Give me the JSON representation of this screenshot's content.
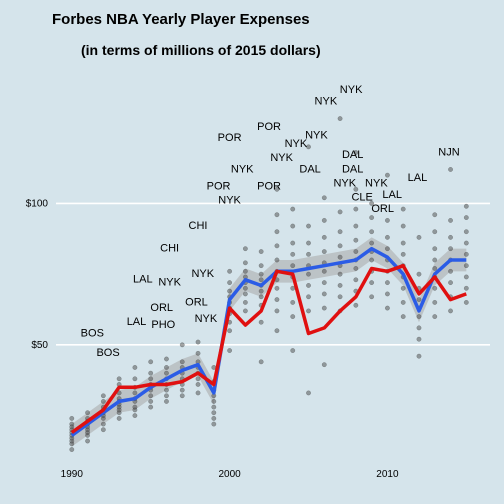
{
  "chart_data": {
    "type": "scatter",
    "title": "Forbes NBA Yearly Player Expenses",
    "subtitle": "(in terms of millions of 2015 dollars)",
    "xlabel": "",
    "ylabel": "",
    "xlim": [
      1989.0,
      2016.5
    ],
    "ylim": [
      10,
      150
    ],
    "x_ticks": [
      1990,
      2000,
      2010
    ],
    "y_ticks": [
      50,
      100
    ],
    "y_tick_labels": [
      "$50",
      "$100"
    ],
    "grid": "horizontal major lines only",
    "legend": "none",
    "colors": {
      "background": "#d5e4eb",
      "points": "#4a4a4a",
      "blue_line": "#2b5ce6",
      "red_line": "#e01010",
      "band": "#a8a8a8",
      "gridline": "#ffffff"
    },
    "series": [
      {
        "kind": "line",
        "color": "#2b5ce6",
        "x": [
          1990,
          1991,
          1992,
          1993,
          1994,
          1995,
          1996,
          1997,
          1998,
          1999,
          2000,
          2001,
          2002,
          2003,
          2004,
          2005,
          2006,
          2007,
          2008,
          2009,
          2010,
          2011,
          2012,
          2013,
          2014,
          2015
        ],
        "y": [
          18,
          22,
          26,
          30,
          31,
          35,
          38,
          41,
          43,
          33,
          66,
          73,
          71,
          76,
          76,
          77,
          78,
          79,
          80,
          84,
          81,
          75,
          62,
          75,
          80,
          80
        ]
      },
      {
        "kind": "line",
        "color": "#e01010",
        "x": [
          1990,
          1991,
          1992,
          1993,
          1994,
          1995,
          1996,
          1997,
          1998,
          1999,
          2000,
          2001,
          2002,
          2003,
          2004,
          2005,
          2006,
          2007,
          2008,
          2009,
          2010,
          2011,
          2012,
          2013,
          2014,
          2015
        ],
        "y": [
          19,
          23,
          27,
          35,
          35,
          36,
          36,
          37,
          40,
          36,
          63,
          57,
          62,
          76,
          75,
          54,
          56,
          62,
          67,
          77,
          76,
          78,
          68,
          74,
          66,
          68
        ]
      }
    ],
    "points": [
      {
        "x": 1990,
        "y": 13
      },
      {
        "x": 1990,
        "y": 15
      },
      {
        "x": 1990,
        "y": 16
      },
      {
        "x": 1990,
        "y": 17
      },
      {
        "x": 1990,
        "y": 18
      },
      {
        "x": 1990,
        "y": 19
      },
      {
        "x": 1990,
        "y": 20
      },
      {
        "x": 1990,
        "y": 21
      },
      {
        "x": 1990,
        "y": 22
      },
      {
        "x": 1990,
        "y": 24
      },
      {
        "x": 1991,
        "y": 16
      },
      {
        "x": 1991,
        "y": 18
      },
      {
        "x": 1991,
        "y": 19
      },
      {
        "x": 1991,
        "y": 20
      },
      {
        "x": 1991,
        "y": 21
      },
      {
        "x": 1991,
        "y": 22
      },
      {
        "x": 1991,
        "y": 23
      },
      {
        "x": 1991,
        "y": 24
      },
      {
        "x": 1991,
        "y": 26
      },
      {
        "x": 1992,
        "y": 20
      },
      {
        "x": 1992,
        "y": 22
      },
      {
        "x": 1992,
        "y": 24
      },
      {
        "x": 1992,
        "y": 25
      },
      {
        "x": 1992,
        "y": 26
      },
      {
        "x": 1992,
        "y": 27
      },
      {
        "x": 1992,
        "y": 28
      },
      {
        "x": 1992,
        "y": 30
      },
      {
        "x": 1992,
        "y": 32
      },
      {
        "x": 1993,
        "y": 24
      },
      {
        "x": 1993,
        "y": 26
      },
      {
        "x": 1993,
        "y": 27
      },
      {
        "x": 1993,
        "y": 28
      },
      {
        "x": 1993,
        "y": 29
      },
      {
        "x": 1993,
        "y": 30
      },
      {
        "x": 1993,
        "y": 31
      },
      {
        "x": 1993,
        "y": 33
      },
      {
        "x": 1993,
        "y": 36
      },
      {
        "x": 1993,
        "y": 38
      },
      {
        "x": 1994,
        "y": 25
      },
      {
        "x": 1994,
        "y": 27
      },
      {
        "x": 1994,
        "y": 28
      },
      {
        "x": 1994,
        "y": 30
      },
      {
        "x": 1994,
        "y": 31
      },
      {
        "x": 1994,
        "y": 33
      },
      {
        "x": 1994,
        "y": 35
      },
      {
        "x": 1994,
        "y": 38
      },
      {
        "x": 1994,
        "y": 42
      },
      {
        "x": 1995,
        "y": 28
      },
      {
        "x": 1995,
        "y": 30
      },
      {
        "x": 1995,
        "y": 32
      },
      {
        "x": 1995,
        "y": 34
      },
      {
        "x": 1995,
        "y": 35
      },
      {
        "x": 1995,
        "y": 36
      },
      {
        "x": 1995,
        "y": 38
      },
      {
        "x": 1995,
        "y": 40
      },
      {
        "x": 1995,
        "y": 44
      },
      {
        "x": 1996,
        "y": 30
      },
      {
        "x": 1996,
        "y": 32
      },
      {
        "x": 1996,
        "y": 34
      },
      {
        "x": 1996,
        "y": 36
      },
      {
        "x": 1996,
        "y": 38
      },
      {
        "x": 1996,
        "y": 40
      },
      {
        "x": 1996,
        "y": 42
      },
      {
        "x": 1996,
        "y": 45
      },
      {
        "x": 1997,
        "y": 32
      },
      {
        "x": 1997,
        "y": 34
      },
      {
        "x": 1997,
        "y": 36
      },
      {
        "x": 1997,
        "y": 38
      },
      {
        "x": 1997,
        "y": 40
      },
      {
        "x": 1997,
        "y": 42
      },
      {
        "x": 1997,
        "y": 44
      },
      {
        "x": 1997,
        "y": 50
      },
      {
        "x": 1998,
        "y": 33
      },
      {
        "x": 1998,
        "y": 36
      },
      {
        "x": 1998,
        "y": 38
      },
      {
        "x": 1998,
        "y": 40
      },
      {
        "x": 1998,
        "y": 42
      },
      {
        "x": 1998,
        "y": 44
      },
      {
        "x": 1998,
        "y": 47
      },
      {
        "x": 1998,
        "y": 51
      },
      {
        "x": 1999,
        "y": 22
      },
      {
        "x": 1999,
        "y": 24
      },
      {
        "x": 1999,
        "y": 26
      },
      {
        "x": 1999,
        "y": 28
      },
      {
        "x": 1999,
        "y": 30
      },
      {
        "x": 1999,
        "y": 32
      },
      {
        "x": 1999,
        "y": 34
      },
      {
        "x": 1999,
        "y": 37
      },
      {
        "x": 1999,
        "y": 42
      },
      {
        "x": 2000,
        "y": 48
      },
      {
        "x": 2000,
        "y": 55
      },
      {
        "x": 2000,
        "y": 58
      },
      {
        "x": 2000,
        "y": 61
      },
      {
        "x": 2000,
        "y": 63
      },
      {
        "x": 2000,
        "y": 65
      },
      {
        "x": 2000,
        "y": 67
      },
      {
        "x": 2000,
        "y": 69
      },
      {
        "x": 2000,
        "y": 72
      },
      {
        "x": 2000,
        "y": 76
      },
      {
        "x": 2001,
        "y": 62
      },
      {
        "x": 2001,
        "y": 65
      },
      {
        "x": 2001,
        "y": 68
      },
      {
        "x": 2001,
        "y": 70
      },
      {
        "x": 2001,
        "y": 72
      },
      {
        "x": 2001,
        "y": 74
      },
      {
        "x": 2001,
        "y": 76
      },
      {
        "x": 2001,
        "y": 79
      },
      {
        "x": 2001,
        "y": 84
      },
      {
        "x": 2002,
        "y": 44
      },
      {
        "x": 2002,
        "y": 58
      },
      {
        "x": 2002,
        "y": 64
      },
      {
        "x": 2002,
        "y": 67
      },
      {
        "x": 2002,
        "y": 69
      },
      {
        "x": 2002,
        "y": 71
      },
      {
        "x": 2002,
        "y": 73
      },
      {
        "x": 2002,
        "y": 75
      },
      {
        "x": 2002,
        "y": 78
      },
      {
        "x": 2002,
        "y": 83
      },
      {
        "x": 2003,
        "y": 55
      },
      {
        "x": 2003,
        "y": 62
      },
      {
        "x": 2003,
        "y": 66
      },
      {
        "x": 2003,
        "y": 70
      },
      {
        "x": 2003,
        "y": 73
      },
      {
        "x": 2003,
        "y": 76
      },
      {
        "x": 2003,
        "y": 80
      },
      {
        "x": 2003,
        "y": 85
      },
      {
        "x": 2003,
        "y": 90
      },
      {
        "x": 2003,
        "y": 96
      },
      {
        "x": 2003,
        "y": 105
      },
      {
        "x": 2004,
        "y": 48
      },
      {
        "x": 2004,
        "y": 60
      },
      {
        "x": 2004,
        "y": 65
      },
      {
        "x": 2004,
        "y": 70
      },
      {
        "x": 2004,
        "y": 74
      },
      {
        "x": 2004,
        "y": 78
      },
      {
        "x": 2004,
        "y": 82
      },
      {
        "x": 2004,
        "y": 86
      },
      {
        "x": 2004,
        "y": 92
      },
      {
        "x": 2004,
        "y": 98
      },
      {
        "x": 2005,
        "y": 33
      },
      {
        "x": 2005,
        "y": 62
      },
      {
        "x": 2005,
        "y": 67
      },
      {
        "x": 2005,
        "y": 71
      },
      {
        "x": 2005,
        "y": 75
      },
      {
        "x": 2005,
        "y": 78
      },
      {
        "x": 2005,
        "y": 82
      },
      {
        "x": 2005,
        "y": 86
      },
      {
        "x": 2005,
        "y": 92
      },
      {
        "x": 2005,
        "y": 120
      },
      {
        "x": 2006,
        "y": 43
      },
      {
        "x": 2006,
        "y": 63
      },
      {
        "x": 2006,
        "y": 68
      },
      {
        "x": 2006,
        "y": 72
      },
      {
        "x": 2006,
        "y": 76
      },
      {
        "x": 2006,
        "y": 79
      },
      {
        "x": 2006,
        "y": 83
      },
      {
        "x": 2006,
        "y": 88
      },
      {
        "x": 2006,
        "y": 94
      },
      {
        "x": 2006,
        "y": 102
      },
      {
        "x": 2007,
        "y": 62
      },
      {
        "x": 2007,
        "y": 67
      },
      {
        "x": 2007,
        "y": 71
      },
      {
        "x": 2007,
        "y": 75
      },
      {
        "x": 2007,
        "y": 78
      },
      {
        "x": 2007,
        "y": 81
      },
      {
        "x": 2007,
        "y": 85
      },
      {
        "x": 2007,
        "y": 90
      },
      {
        "x": 2007,
        "y": 97
      },
      {
        "x": 2007,
        "y": 130
      },
      {
        "x": 2008,
        "y": 64
      },
      {
        "x": 2008,
        "y": 69
      },
      {
        "x": 2008,
        "y": 73
      },
      {
        "x": 2008,
        "y": 77
      },
      {
        "x": 2008,
        "y": 80
      },
      {
        "x": 2008,
        "y": 83
      },
      {
        "x": 2008,
        "y": 87
      },
      {
        "x": 2008,
        "y": 92
      },
      {
        "x": 2008,
        "y": 98
      },
      {
        "x": 2008,
        "y": 105
      },
      {
        "x": 2008,
        "y": 118
      },
      {
        "x": 2009,
        "y": 67
      },
      {
        "x": 2009,
        "y": 72
      },
      {
        "x": 2009,
        "y": 76
      },
      {
        "x": 2009,
        "y": 80
      },
      {
        "x": 2009,
        "y": 83
      },
      {
        "x": 2009,
        "y": 86
      },
      {
        "x": 2009,
        "y": 90
      },
      {
        "x": 2009,
        "y": 95
      },
      {
        "x": 2009,
        "y": 100
      },
      {
        "x": 2010,
        "y": 63
      },
      {
        "x": 2010,
        "y": 68
      },
      {
        "x": 2010,
        "y": 72
      },
      {
        "x": 2010,
        "y": 76
      },
      {
        "x": 2010,
        "y": 80
      },
      {
        "x": 2010,
        "y": 84
      },
      {
        "x": 2010,
        "y": 88
      },
      {
        "x": 2010,
        "y": 94
      },
      {
        "x": 2010,
        "y": 110
      },
      {
        "x": 2011,
        "y": 60
      },
      {
        "x": 2011,
        "y": 65
      },
      {
        "x": 2011,
        "y": 70
      },
      {
        "x": 2011,
        "y": 74
      },
      {
        "x": 2011,
        "y": 78
      },
      {
        "x": 2011,
        "y": 82
      },
      {
        "x": 2011,
        "y": 86
      },
      {
        "x": 2011,
        "y": 92
      },
      {
        "x": 2011,
        "y": 98
      },
      {
        "x": 2012,
        "y": 46
      },
      {
        "x": 2012,
        "y": 52
      },
      {
        "x": 2012,
        "y": 56
      },
      {
        "x": 2012,
        "y": 60
      },
      {
        "x": 2012,
        "y": 63
      },
      {
        "x": 2012,
        "y": 66
      },
      {
        "x": 2012,
        "y": 70
      },
      {
        "x": 2012,
        "y": 75
      },
      {
        "x": 2012,
        "y": 88
      },
      {
        "x": 2013,
        "y": 60
      },
      {
        "x": 2013,
        "y": 65
      },
      {
        "x": 2013,
        "y": 70
      },
      {
        "x": 2013,
        "y": 74
      },
      {
        "x": 2013,
        "y": 77
      },
      {
        "x": 2013,
        "y": 80
      },
      {
        "x": 2013,
        "y": 84
      },
      {
        "x": 2013,
        "y": 90
      },
      {
        "x": 2013,
        "y": 96
      },
      {
        "x": 2014,
        "y": 62
      },
      {
        "x": 2014,
        "y": 67
      },
      {
        "x": 2014,
        "y": 72
      },
      {
        "x": 2014,
        "y": 76
      },
      {
        "x": 2014,
        "y": 80
      },
      {
        "x": 2014,
        "y": 84
      },
      {
        "x": 2014,
        "y": 88
      },
      {
        "x": 2014,
        "y": 94
      },
      {
        "x": 2014,
        "y": 112
      },
      {
        "x": 2015,
        "y": 65
      },
      {
        "x": 2015,
        "y": 70
      },
      {
        "x": 2015,
        "y": 74
      },
      {
        "x": 2015,
        "y": 78
      },
      {
        "x": 2015,
        "y": 82
      },
      {
        "x": 2015,
        "y": 86
      },
      {
        "x": 2015,
        "y": 90
      },
      {
        "x": 2015,
        "y": 95
      },
      {
        "x": 2015,
        "y": 99
      }
    ],
    "annotations": [
      {
        "text": "BOS",
        "x": 1991.3,
        "y": 53
      },
      {
        "text": "BOS",
        "x": 1992.3,
        "y": 46
      },
      {
        "text": "LAL",
        "x": 1994.1,
        "y": 57
      },
      {
        "text": "LAL",
        "x": 1994.5,
        "y": 72
      },
      {
        "text": "NYK",
        "x": 1996.2,
        "y": 71
      },
      {
        "text": "CHI",
        "x": 1996.2,
        "y": 83
      },
      {
        "text": "ORL",
        "x": 1995.7,
        "y": 62
      },
      {
        "text": "PHO",
        "x": 1995.8,
        "y": 56
      },
      {
        "text": "ORL",
        "x": 1997.9,
        "y": 64
      },
      {
        "text": "NYK",
        "x": 1998.5,
        "y": 58
      },
      {
        "text": "NYK",
        "x": 1998.3,
        "y": 74
      },
      {
        "text": "CHI",
        "x": 1998.0,
        "y": 91
      },
      {
        "text": "NYK",
        "x": 2000.0,
        "y": 100
      },
      {
        "text": "POR",
        "x": 1999.3,
        "y": 105
      },
      {
        "text": "NYK",
        "x": 2000.8,
        "y": 111
      },
      {
        "text": "POR",
        "x": 2000.0,
        "y": 122
      },
      {
        "text": "POR",
        "x": 2002.5,
        "y": 126
      },
      {
        "text": "NYK",
        "x": 2004.2,
        "y": 120
      },
      {
        "text": "NYK",
        "x": 2003.3,
        "y": 115
      },
      {
        "text": "POR",
        "x": 2002.5,
        "y": 105
      },
      {
        "text": "NYK",
        "x": 2005.5,
        "y": 123
      },
      {
        "text": "DAL",
        "x": 2005.1,
        "y": 111
      },
      {
        "text": "NYK",
        "x": 2006.1,
        "y": 135
      },
      {
        "text": "NYK",
        "x": 2007.7,
        "y": 139
      },
      {
        "text": "DAL",
        "x": 2007.8,
        "y": 116
      },
      {
        "text": "DAL",
        "x": 2007.8,
        "y": 111
      },
      {
        "text": "NYK",
        "x": 2007.3,
        "y": 106
      },
      {
        "text": "NYK",
        "x": 2009.3,
        "y": 106
      },
      {
        "text": "CLE",
        "x": 2008.4,
        "y": 101
      },
      {
        "text": "LAL",
        "x": 2010.3,
        "y": 102
      },
      {
        "text": "ORL",
        "x": 2009.7,
        "y": 97
      },
      {
        "text": "LAL",
        "x": 2011.9,
        "y": 108
      },
      {
        "text": "NJN",
        "x": 2013.9,
        "y": 117
      }
    ]
  }
}
